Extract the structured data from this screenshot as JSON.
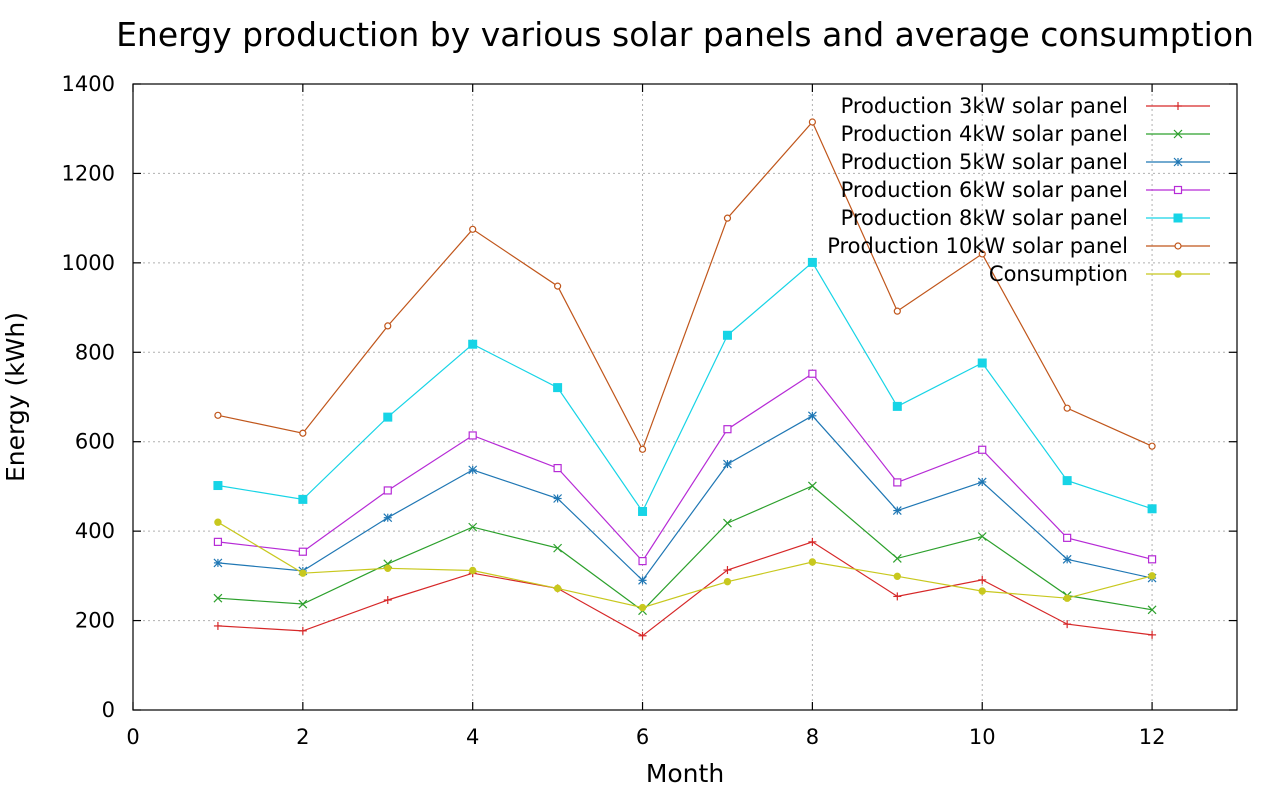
{
  "chart_data": {
    "type": "line",
    "title": "Energy production by various solar panels and average consumption",
    "xlabel": "Month",
    "ylabel": "Energy (kWh)",
    "xlim": [
      0,
      13
    ],
    "ylim": [
      0,
      1400
    ],
    "xticks": [
      0,
      2,
      4,
      6,
      8,
      10,
      12
    ],
    "yticks": [
      0,
      200,
      400,
      600,
      800,
      1000,
      1200,
      1400
    ],
    "grid": true,
    "legend_position": "top-right",
    "x": [
      1,
      2,
      3,
      4,
      5,
      6,
      7,
      8,
      9,
      10,
      11,
      12
    ],
    "series": [
      {
        "name": "Production 3kW solar panel",
        "color": "#d62728",
        "marker": "plus",
        "values": [
          188,
          177,
          246,
          306,
          272,
          166,
          313,
          376,
          254,
          291,
          192,
          168
        ]
      },
      {
        "name": "Production 4kW solar panel",
        "color": "#2ca02c",
        "marker": "cross",
        "values": [
          250,
          237,
          327,
          409,
          362,
          222,
          418,
          501,
          339,
          388,
          256,
          224
        ]
      },
      {
        "name": "Production 5kW solar panel",
        "color": "#1f77b4",
        "marker": "star",
        "values": [
          329,
          311,
          430,
          537,
          473,
          290,
          550,
          658,
          446,
          510,
          337,
          295
        ]
      },
      {
        "name": "Production 6kW solar panel",
        "color": "#b62bd6",
        "marker": "square-open",
        "values": [
          376,
          354,
          491,
          614,
          541,
          333,
          628,
          752,
          509,
          582,
          385,
          337
        ]
      },
      {
        "name": "Production 8kW solar panel",
        "color": "#17d4e6",
        "marker": "square-filled",
        "values": [
          502,
          471,
          655,
          818,
          721,
          444,
          838,
          1001,
          679,
          776,
          513,
          450
        ]
      },
      {
        "name": "Production 10kW solar panel",
        "color": "#c0561b",
        "marker": "circle-open",
        "values": [
          659,
          619,
          859,
          1075,
          948,
          583,
          1100,
          1315,
          892,
          1020,
          675,
          590
        ]
      },
      {
        "name": "Consumption",
        "color": "#c8c81e",
        "marker": "circle-filled",
        "values": [
          420,
          306,
          317,
          312,
          272,
          229,
          287,
          331,
          299,
          266,
          250,
          300
        ]
      }
    ]
  }
}
